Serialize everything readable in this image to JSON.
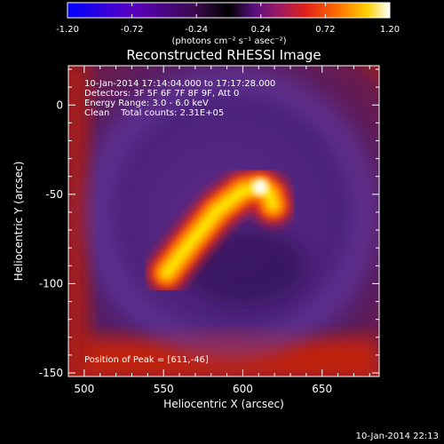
{
  "chart_data": {
    "type": "heatmap",
    "title": "Reconstructed RHESSI Image",
    "xlabel": "Heliocentric X (arcsec)",
    "ylabel": "Heliocentric Y (arcsec)",
    "xlim": [
      490,
      686
    ],
    "ylim": [
      -152,
      22
    ],
    "xticks": [
      500,
      550,
      600,
      650
    ],
    "yticks": [
      0,
      -50,
      -100,
      -150
    ],
    "colorbar": {
      "range": [
        -1.2,
        1.2
      ],
      "ticks": [
        "-1.20",
        "-0.72",
        "-0.24",
        "0.24",
        "0.72",
        "1.20"
      ],
      "unit_label": "(photons cm⁻² s⁻¹ asec⁻²)",
      "colors": [
        "#0000ff",
        "#5a00c0",
        "#6a1a8a",
        "#000000",
        "#6a1090",
        "#c02050",
        "#ff2000",
        "#ff7000",
        "#ffd000",
        "#ffffff"
      ]
    },
    "info_lines": [
      "10-Jan-2014 17:14:04.000 to 17:17:28.000",
      "Detectors: 3F 5F 6F 7F 8F 9F, Att 0",
      "Energy Range: 3.0 - 6.0 keV",
      "Clean    Total counts: 2.31E+05"
    ],
    "peak_label": "Position of Peak = [611,-46]",
    "peak": [
      611,
      -46
    ],
    "source_path": [
      [
        552,
        -94
      ],
      [
        568,
        -76
      ],
      [
        584,
        -59
      ],
      [
        600,
        -48
      ],
      [
        611,
        -46
      ],
      [
        617,
        -50
      ],
      [
        619,
        -56
      ]
    ],
    "timestamp": "10-Jan-2014 22:13"
  }
}
